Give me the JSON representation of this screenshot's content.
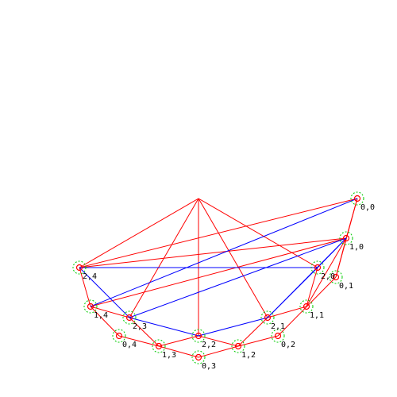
{
  "colors": {
    "background": "#ffffff",
    "red_edge": "#ff0000",
    "blue_edge": "#0000ff",
    "node_marker": "#ff0000",
    "node_halo": "#00cc00",
    "label": "#000000"
  },
  "diagram": {
    "nodes": [
      {
        "id": "apex",
        "label": ""
      },
      {
        "id": "n00",
        "label": "0,0"
      },
      {
        "id": "n10",
        "label": "1,0"
      },
      {
        "id": "n01",
        "label": "0,1"
      },
      {
        "id": "n20",
        "label": "2,0"
      },
      {
        "id": "n24",
        "label": "2,4"
      },
      {
        "id": "n14",
        "label": "1,4"
      },
      {
        "id": "n23",
        "label": "2,3"
      },
      {
        "id": "n04",
        "label": "0,4"
      },
      {
        "id": "n13",
        "label": "1,3"
      },
      {
        "id": "n22",
        "label": "2,2"
      },
      {
        "id": "n03",
        "label": "0,3"
      },
      {
        "id": "n12",
        "label": "1,2"
      },
      {
        "id": "n02",
        "label": "0,2"
      },
      {
        "id": "n21",
        "label": "2,1"
      },
      {
        "id": "n11",
        "label": "1,1"
      }
    ],
    "red_edges": [
      [
        "apex",
        "n24"
      ],
      [
        "apex",
        "n23"
      ],
      [
        "apex",
        "n22"
      ],
      [
        "apex",
        "n21"
      ],
      [
        "apex",
        "n20"
      ],
      [
        "n24",
        "n00"
      ],
      [
        "n24",
        "n10"
      ],
      [
        "n14",
        "n10"
      ],
      [
        "n00",
        "n10"
      ],
      [
        "n00",
        "n01"
      ],
      [
        "n10",
        "n01"
      ],
      [
        "n10",
        "n11"
      ],
      [
        "n01",
        "n02"
      ],
      [
        "n02",
        "n12"
      ],
      [
        "n12",
        "n03"
      ],
      [
        "n03",
        "n13"
      ],
      [
        "n13",
        "n04"
      ],
      [
        "n04",
        "n14"
      ],
      [
        "n14",
        "n24"
      ],
      [
        "n14",
        "n23"
      ],
      [
        "n23",
        "n13"
      ],
      [
        "n13",
        "n22"
      ],
      [
        "n22",
        "n12"
      ],
      [
        "n12",
        "n21"
      ],
      [
        "n21",
        "n11"
      ],
      [
        "n11",
        "n20"
      ]
    ],
    "blue_edges": [
      [
        "n24",
        "n20"
      ],
      [
        "n14",
        "n00"
      ],
      [
        "n23",
        "n10"
      ],
      [
        "n24",
        "n23"
      ],
      [
        "n23",
        "n22"
      ],
      [
        "n22",
        "n21"
      ],
      [
        "n21",
        "n20"
      ],
      [
        "n20",
        "n10"
      ],
      [
        "n21",
        "n10"
      ]
    ]
  }
}
